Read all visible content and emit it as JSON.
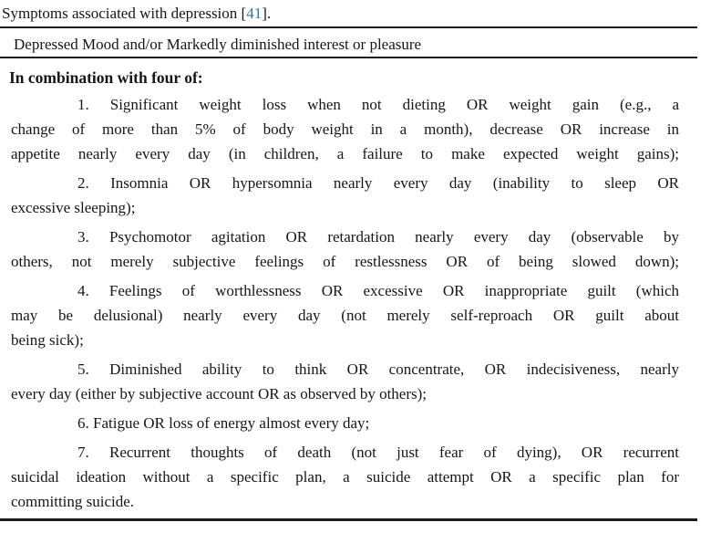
{
  "title": {
    "text_before_citation": "Symptoms associated with depression [",
    "citation": "41",
    "text_after_citation": "]."
  },
  "table": {
    "criterion_row": "Depressed Mood and/or Markedly diminished interest or pleasure",
    "subheader": "In combination with four of:",
    "items": [
      {
        "lines": [
          "1. Significant weight loss when not dieting OR weight gain (e.g., a",
          "change of more than 5% of body weight in a month), decrease OR increase in",
          "appetite nearly every day (in children, a failure to make expected weight gains);"
        ]
      },
      {
        "lines": [
          "2. Insomnia OR hypersomnia nearly every day (inability to sleep OR",
          "excessive sleeping);"
        ]
      },
      {
        "lines": [
          "3. Psychomotor agitation OR retardation nearly every day (observable by",
          "others, not merely subjective feelings of restlessness OR of being slowed down);"
        ]
      },
      {
        "lines": [
          "4. Feelings of worthlessness OR excessive OR inappropriate guilt (which",
          "may be delusional) nearly every day (not merely self-reproach OR guilt about",
          "being sick);"
        ]
      },
      {
        "lines": [
          "5. Diminished ability to think OR concentrate, OR indecisiveness, nearly",
          "every day (either by subjective account OR as observed by others);"
        ]
      },
      {
        "lines": [
          "6. Fatigue OR loss of energy almost every day;"
        ]
      },
      {
        "lines": [
          "7. Recurrent thoughts of death (not just fear of dying), OR recurrent",
          "suicidal ideation without a specific plan, a suicide attempt OR a specific plan for",
          "committing suicide."
        ]
      }
    ]
  },
  "colors": {
    "citation": "#2f7e8c",
    "text": "#161616",
    "rule": "#1c1c1c",
    "background": "#ffffff"
  }
}
